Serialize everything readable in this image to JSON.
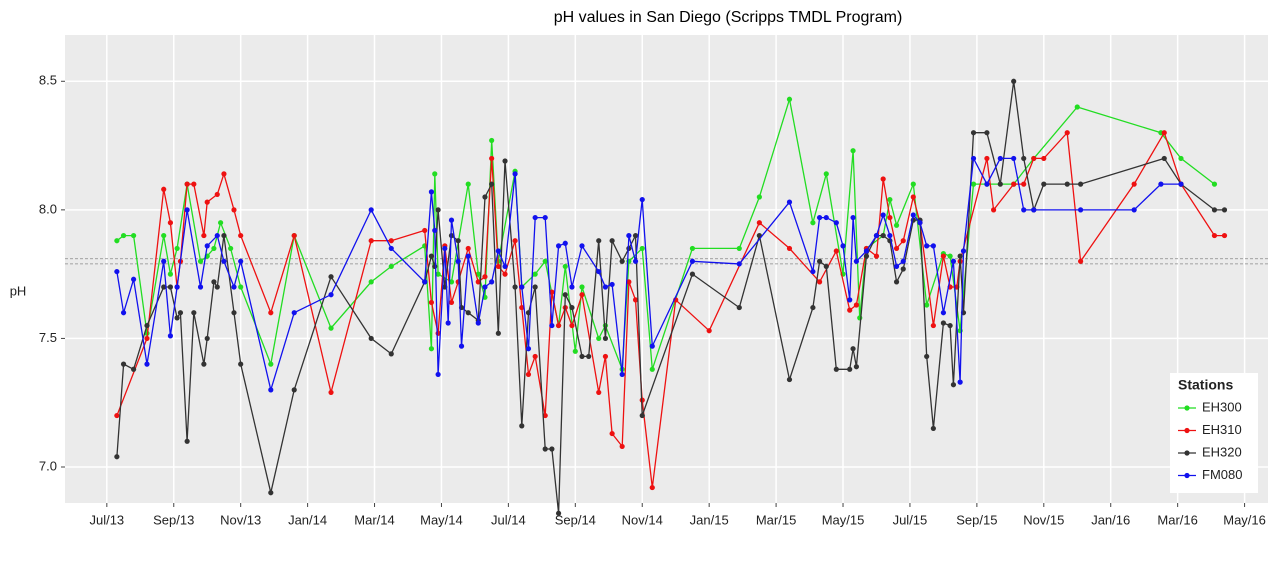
{
  "chart_data": {
    "type": "line",
    "title": "pH values in San Diego (Scripps TMDL Program)",
    "y_label": "pH",
    "legend_title": "Stations",
    "legend": "bottom-right",
    "grid": true,
    "xlim": [
      -1.25,
      34.7
    ],
    "xticks": [
      {
        "value": 0,
        "label": "Jul/13"
      },
      {
        "value": 2,
        "label": "Sep/13"
      },
      {
        "value": 4,
        "label": "Nov/13"
      },
      {
        "value": 6,
        "label": "Jan/14"
      },
      {
        "value": 8,
        "label": "Mar/14"
      },
      {
        "value": 10,
        "label": "May/14"
      },
      {
        "value": 12,
        "label": "Jul/14"
      },
      {
        "value": 14,
        "label": "Sep/14"
      },
      {
        "value": 16,
        "label": "Nov/14"
      },
      {
        "value": 18,
        "label": "Jan/15"
      },
      {
        "value": 20,
        "label": "Mar/15"
      },
      {
        "value": 22,
        "label": "May/15"
      },
      {
        "value": 24,
        "label": "Jul/15"
      },
      {
        "value": 26,
        "label": "Sep/15"
      },
      {
        "value": 28,
        "label": "Nov/15"
      },
      {
        "value": 30,
        "label": "Jan/16"
      },
      {
        "value": 32,
        "label": "Mar/16"
      },
      {
        "value": 34,
        "label": "May/16"
      }
    ],
    "ylim": [
      6.86,
      8.68
    ],
    "yticks": [
      {
        "value": 7,
        "label": "7.0"
      },
      7.5,
      {
        "value": 8,
        "label": "8.0"
      },
      8.5
    ],
    "hlines": [
      7.79,
      7.81
    ],
    "series": [
      {
        "name": "EH300",
        "color": "#22dd22",
        "x": [
          0.3,
          0.5,
          0.8,
          1.2,
          1.7,
          1.9,
          2.1,
          2.4,
          2.8,
          3.0,
          3.2,
          3.4,
          3.7,
          4.0,
          4.9,
          5.6,
          6.7,
          7.9,
          8.5,
          9.5,
          9.7,
          9.8,
          9.9,
          10.3,
          10.8,
          11.1,
          11.3,
          11.5,
          11.7,
          12.2,
          12.4,
          12.8,
          13.1,
          13.5,
          13.7,
          14.0,
          14.2,
          14.7,
          14.9,
          15.4,
          15.6,
          16.0,
          16.3,
          17.5,
          18.9,
          19.5,
          20.4,
          21.1,
          21.5,
          22.0,
          22.3,
          22.5,
          22.7,
          23.2,
          23.4,
          23.6,
          24.1,
          24.5,
          25.0,
          25.2,
          25.5,
          25.9,
          26.3,
          27.1,
          27.7,
          29.0,
          31.5,
          32.1,
          33.1
        ],
        "values": [
          7.88,
          7.9,
          7.9,
          7.52,
          7.9,
          7.75,
          7.85,
          8.1,
          7.8,
          7.82,
          7.85,
          7.95,
          7.85,
          7.7,
          7.4,
          7.9,
          7.54,
          7.72,
          7.78,
          7.86,
          7.46,
          8.14,
          7.75,
          7.72,
          8.1,
          7.75,
          7.66,
          8.27,
          7.8,
          8.15,
          7.7,
          7.75,
          7.8,
          7.55,
          7.78,
          7.45,
          7.7,
          7.5,
          7.55,
          7.38,
          7.8,
          7.85,
          7.38,
          7.85,
          7.85,
          8.05,
          8.43,
          7.95,
          8.14,
          7.75,
          8.23,
          7.58,
          7.85,
          7.9,
          8.04,
          7.94,
          8.1,
          7.63,
          7.83,
          7.82,
          7.53,
          8.1,
          8.1,
          8.1,
          8.2,
          8.4,
          8.3,
          8.2,
          8.1
        ]
      },
      {
        "name": "EH310",
        "color": "#ee1111",
        "x": [
          0.3,
          1.2,
          1.7,
          1.9,
          2.1,
          2.2,
          2.4,
          2.6,
          2.9,
          3.0,
          3.3,
          3.5,
          3.8,
          4.0,
          4.9,
          5.6,
          6.7,
          7.9,
          8.5,
          9.5,
          9.7,
          9.9,
          10.1,
          10.3,
          10.5,
          10.8,
          11.1,
          11.3,
          11.5,
          11.7,
          11.9,
          12.2,
          12.4,
          12.6,
          12.8,
          13.1,
          13.3,
          13.5,
          13.7,
          13.9,
          14.2,
          14.7,
          14.9,
          15.1,
          15.4,
          15.6,
          15.8,
          16.0,
          16.3,
          17.0,
          18.0,
          19.5,
          20.4,
          21.3,
          21.8,
          22.2,
          22.4,
          22.7,
          23.0,
          23.2,
          23.4,
          23.6,
          23.8,
          24.1,
          24.3,
          24.7,
          25.0,
          25.2,
          25.4,
          25.5,
          26.3,
          26.5,
          27.1,
          27.4,
          27.7,
          28.0,
          28.7,
          29.1,
          30.7,
          31.6,
          32.1,
          33.1,
          33.4
        ],
        "values": [
          7.2,
          7.5,
          8.08,
          7.95,
          7.7,
          7.8,
          8.1,
          8.1,
          7.9,
          8.03,
          8.06,
          8.14,
          8.0,
          7.9,
          7.6,
          7.9,
          7.29,
          7.88,
          7.88,
          7.92,
          7.64,
          7.52,
          7.86,
          7.64,
          7.72,
          7.85,
          7.72,
          7.74,
          8.2,
          7.78,
          7.75,
          7.88,
          7.62,
          7.36,
          7.43,
          7.2,
          7.68,
          7.55,
          7.62,
          7.55,
          7.67,
          7.29,
          7.43,
          7.13,
          7.08,
          7.72,
          7.65,
          7.26,
          6.92,
          7.65,
          7.53,
          7.95,
          7.85,
          7.72,
          7.84,
          7.61,
          7.63,
          7.85,
          7.82,
          8.12,
          7.97,
          7.85,
          7.88,
          8.05,
          7.95,
          7.55,
          7.82,
          7.7,
          7.7,
          7.8,
          8.2,
          8.0,
          8.1,
          8.1,
          8.2,
          8.2,
          8.3,
          7.8,
          8.1,
          8.3,
          8.1,
          7.9,
          7.9
        ]
      },
      {
        "name": "EH320",
        "color": "#333333",
        "x": [
          0.3,
          0.5,
          0.8,
          1.2,
          1.7,
          1.9,
          2.1,
          2.2,
          2.4,
          2.6,
          2.9,
          3.0,
          3.2,
          3.3,
          3.5,
          3.8,
          4.0,
          4.9,
          5.6,
          6.7,
          7.9,
          8.5,
          9.5,
          9.7,
          9.8,
          9.9,
          10.1,
          10.3,
          10.5,
          10.6,
          10.8,
          11.1,
          11.3,
          11.5,
          11.7,
          11.9,
          12.2,
          12.4,
          12.6,
          12.8,
          13.1,
          13.3,
          13.5,
          13.7,
          13.9,
          14.2,
          14.4,
          14.7,
          14.9,
          15.1,
          15.4,
          15.6,
          15.8,
          16.0,
          17.5,
          18.9,
          19.5,
          20.4,
          21.1,
          21.3,
          21.5,
          21.8,
          22.2,
          22.3,
          22.4,
          22.7,
          23.0,
          23.2,
          23.4,
          23.6,
          23.8,
          24.1,
          24.3,
          24.5,
          24.7,
          25.0,
          25.2,
          25.3,
          25.5,
          25.6,
          25.9,
          26.3,
          26.7,
          27.1,
          27.4,
          27.7,
          28.0,
          28.7,
          29.1,
          31.6,
          32.1,
          33.1,
          33.4
        ],
        "values": [
          7.04,
          7.4,
          7.38,
          7.55,
          7.7,
          7.7,
          7.58,
          7.6,
          7.1,
          7.6,
          7.4,
          7.5,
          7.72,
          7.7,
          7.9,
          7.6,
          7.4,
          6.9,
          7.3,
          7.74,
          7.5,
          7.44,
          7.72,
          7.82,
          7.78,
          8.0,
          7.7,
          7.9,
          7.88,
          7.62,
          7.6,
          7.57,
          8.05,
          8.1,
          7.52,
          8.19,
          7.7,
          7.16,
          7.6,
          7.7,
          7.07,
          7.07,
          6.82,
          7.67,
          7.62,
          7.43,
          7.43,
          7.88,
          7.5,
          7.88,
          7.8,
          7.85,
          7.9,
          7.2,
          7.75,
          7.62,
          7.9,
          7.34,
          7.62,
          7.8,
          7.78,
          7.38,
          7.38,
          7.46,
          7.39,
          7.82,
          7.9,
          7.9,
          7.88,
          7.72,
          7.77,
          7.96,
          7.96,
          7.43,
          7.15,
          7.56,
          7.55,
          7.32,
          7.82,
          7.6,
          8.3,
          8.3,
          8.1,
          8.5,
          8.2,
          8.0,
          8.1,
          8.1,
          8.1,
          8.2,
          8.1,
          8.0,
          8.0
        ]
      },
      {
        "name": "FM080",
        "color": "#1111ee",
        "x": [
          0.3,
          0.5,
          0.8,
          1.2,
          1.7,
          1.9,
          2.1,
          2.4,
          2.8,
          3.0,
          3.3,
          3.5,
          3.8,
          4.0,
          4.9,
          5.6,
          6.7,
          7.9,
          8.5,
          9.5,
          9.7,
          9.8,
          9.9,
          10.1,
          10.2,
          10.3,
          10.5,
          10.6,
          10.8,
          11.1,
          11.3,
          11.5,
          11.7,
          11.9,
          12.2,
          12.4,
          12.6,
          12.8,
          13.1,
          13.3,
          13.5,
          13.7,
          13.9,
          14.2,
          14.7,
          14.9,
          15.1,
          15.4,
          15.6,
          15.8,
          16.0,
          16.3,
          17.5,
          18.9,
          20.4,
          21.1,
          21.3,
          21.5,
          21.8,
          22.0,
          22.2,
          22.3,
          22.4,
          22.7,
          23.0,
          23.2,
          23.4,
          23.6,
          23.8,
          24.1,
          24.3,
          24.5,
          24.7,
          25.0,
          25.3,
          25.5,
          25.6,
          25.9,
          26.3,
          26.7,
          27.1,
          27.4,
          27.7,
          29.1,
          30.7,
          31.5,
          32.1
        ],
        "values": [
          7.76,
          7.6,
          7.73,
          7.4,
          7.8,
          7.51,
          7.7,
          8.0,
          7.7,
          7.86,
          7.9,
          7.8,
          7.7,
          7.8,
          7.3,
          7.6,
          7.67,
          8.0,
          7.85,
          7.72,
          8.07,
          7.92,
          7.36,
          7.85,
          7.56,
          7.96,
          7.8,
          7.47,
          7.82,
          7.56,
          7.7,
          7.72,
          7.84,
          7.78,
          8.14,
          7.7,
          7.46,
          7.97,
          7.97,
          7.55,
          7.86,
          7.87,
          7.7,
          7.86,
          7.76,
          7.7,
          7.71,
          7.36,
          7.9,
          7.8,
          8.04,
          7.47,
          7.8,
          7.79,
          8.03,
          7.76,
          7.97,
          7.97,
          7.95,
          7.86,
          7.65,
          7.97,
          7.8,
          7.84,
          7.9,
          7.98,
          7.9,
          7.78,
          7.8,
          7.98,
          7.95,
          7.86,
          7.86,
          7.6,
          7.8,
          7.33,
          7.84,
          8.2,
          8.1,
          8.2,
          8.2,
          8.0,
          8.0,
          8.0,
          8.0,
          8.1,
          8.1
        ]
      }
    ]
  }
}
